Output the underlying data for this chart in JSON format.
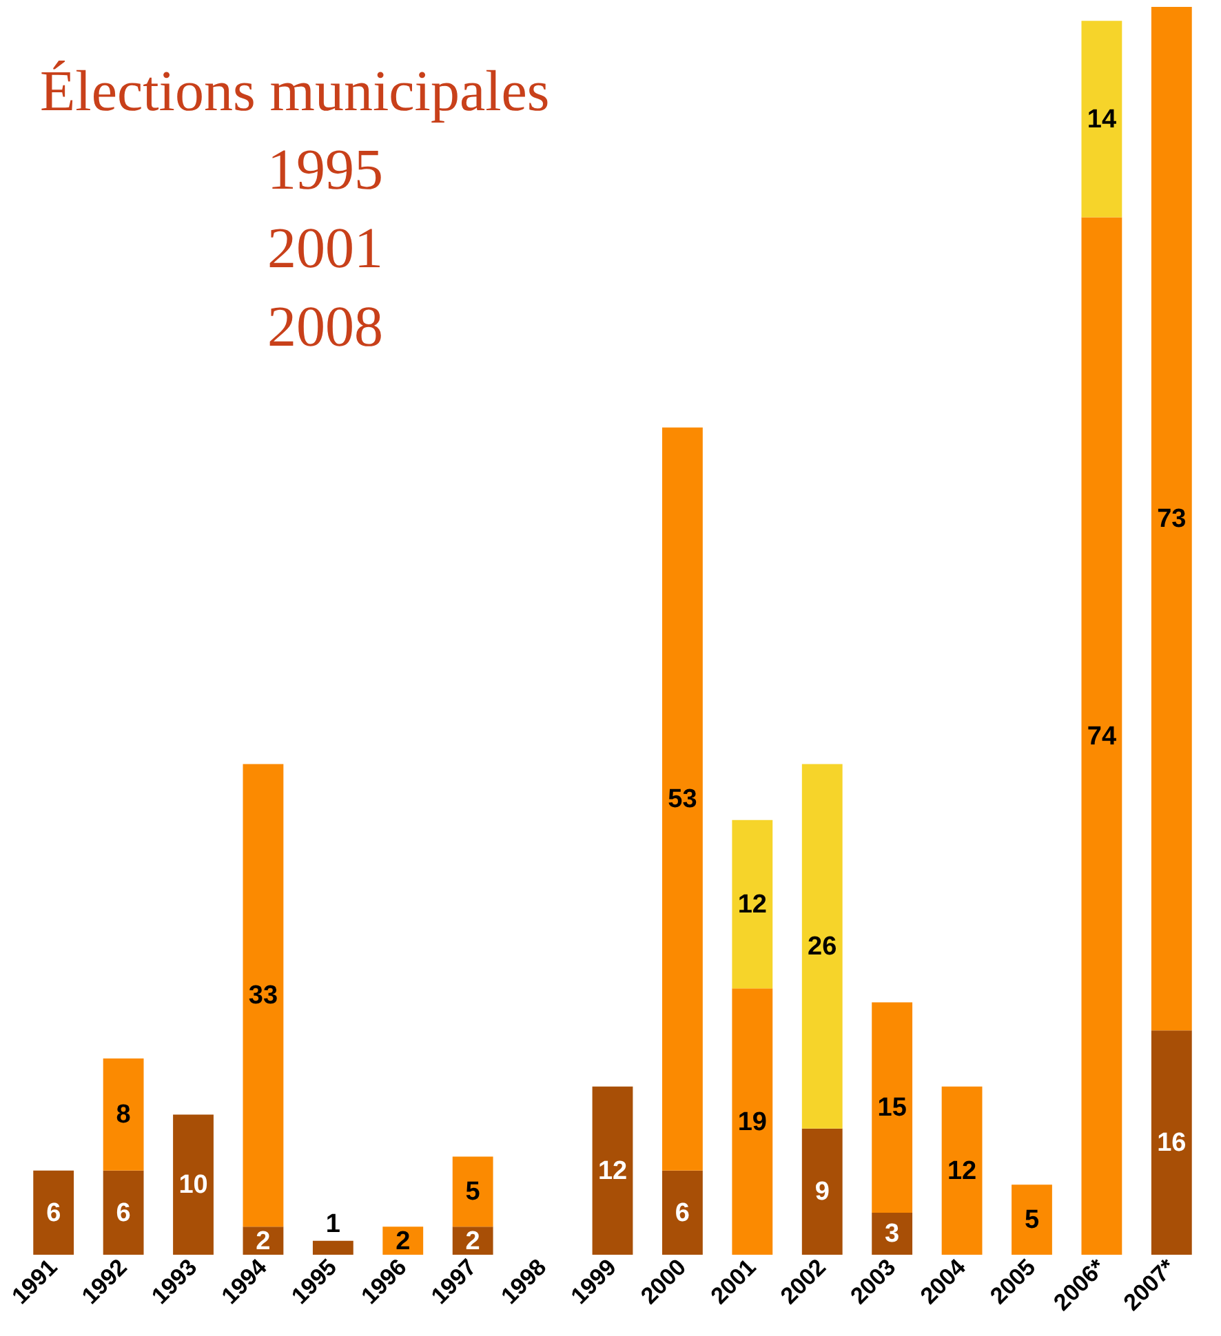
{
  "chart_data": {
    "type": "bar",
    "stacked": true,
    "data_labels": true,
    "grid": false,
    "categories": [
      "1991",
      "1992",
      "1993",
      "1994",
      "1995",
      "1996",
      "1997",
      "1998",
      "1999",
      "2000",
      "2001",
      "2002",
      "2003",
      "2004",
      "2005",
      "2006*",
      "2007*"
    ],
    "series": [
      {
        "color": "#a84f06",
        "values": [
          6,
          6,
          10,
          2,
          1,
          null,
          2,
          null,
          12,
          6,
          null,
          9,
          3,
          null,
          null,
          null,
          16
        ]
      },
      {
        "color": "#fb8a01",
        "values": [
          null,
          8,
          null,
          33,
          null,
          2,
          5,
          null,
          null,
          53,
          19,
          null,
          15,
          12,
          5,
          74,
          73
        ]
      },
      {
        "color": "#f6d42a",
        "values": [
          null,
          null,
          null,
          null,
          null,
          null,
          null,
          null,
          null,
          null,
          12,
          26,
          null,
          null,
          null,
          14,
          null
        ]
      }
    ],
    "annotations": [
      "Élections municipales",
      "1995",
      "2001",
      "2008"
    ]
  }
}
